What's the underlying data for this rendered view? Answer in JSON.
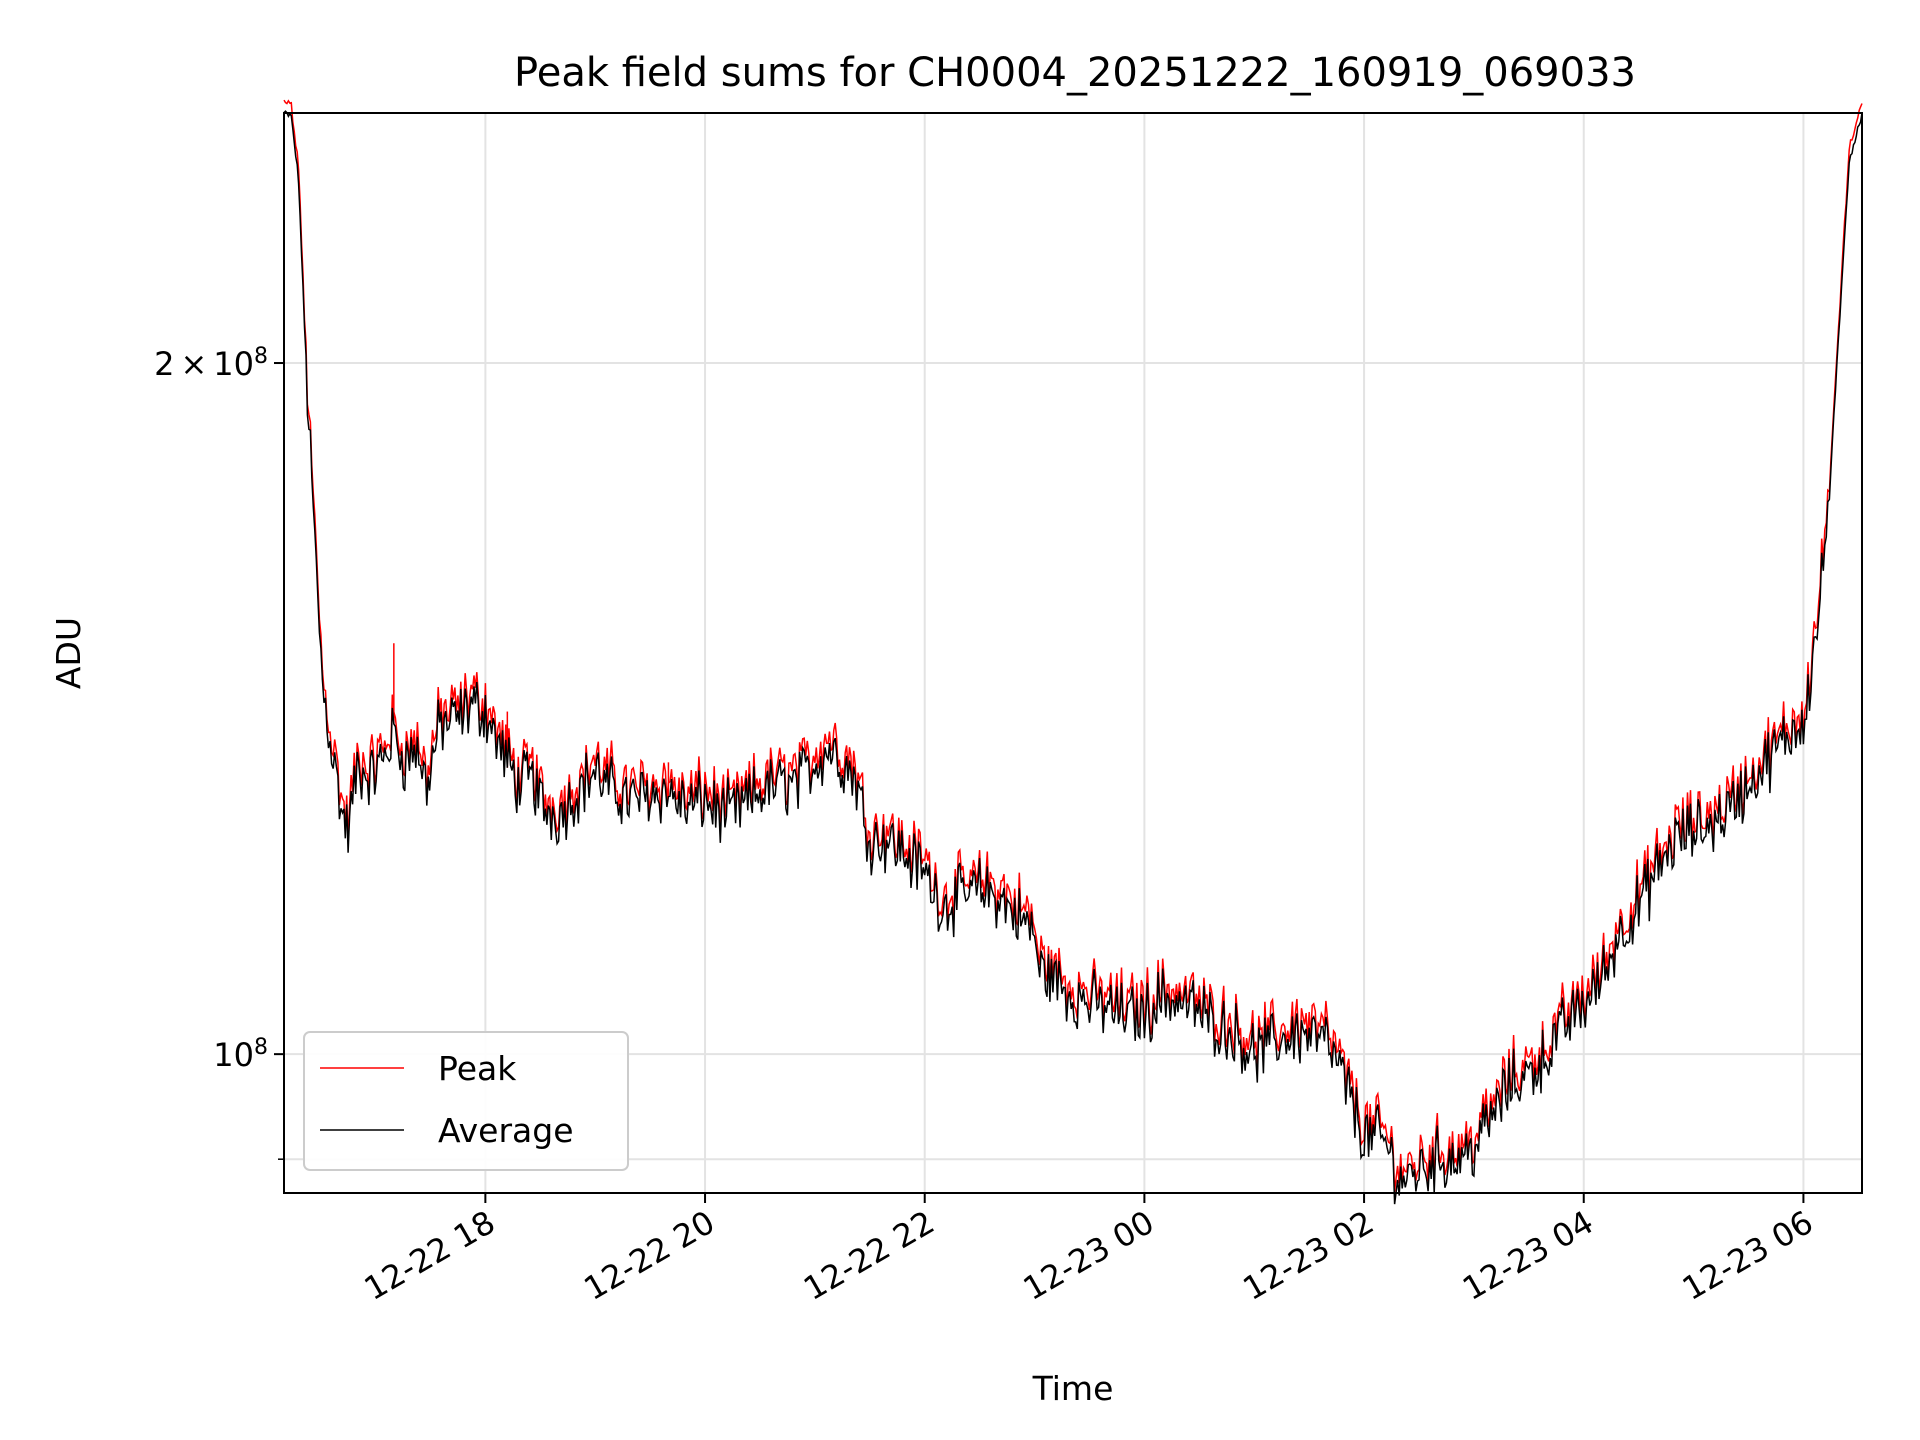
{
  "chart_data": {
    "type": "line",
    "title": "Peak field sums for CH0004_20251222_160919_069033",
    "xlabel": "Time",
    "ylabel": "ADU",
    "y_scale": "log",
    "ylim": [
      87000000,
      257000000
    ],
    "xlim": [
      "2025-12-22 16:10",
      "2025-12-23 06:32"
    ],
    "x_ticks": [
      "12-22 18",
      "12-22 20",
      "12-22 22",
      "12-23 00",
      "12-23 02",
      "12-23 04",
      "12-23 06"
    ],
    "x_tick_times": [
      "2025-12-22 18:00",
      "2025-12-22 20:00",
      "2025-12-22 22:00",
      "2025-12-23 00:00",
      "2025-12-23 02:00",
      "2025-12-23 04:00",
      "2025-12-23 06:00"
    ],
    "y_ticks": [
      {
        "value": 200000000,
        "mantissa": "2",
        "times": "×",
        "base": "10",
        "exp": "8"
      },
      {
        "value": 100000000,
        "mantissa": "",
        "times": "",
        "base": "10",
        "exp": "8"
      }
    ],
    "y_minor_ticks": [
      90000000
    ],
    "grid": true,
    "legend_position": "lower-left",
    "series": [
      {
        "name": "Peak",
        "color": "#ff0000",
        "spikes": [
          {
            "t": "2025-12-22 16:31",
            "y": 147000000
          },
          {
            "t": "2025-12-22 17:10",
            "y": 151000000
          },
          {
            "t": "2025-12-22 18:12",
            "y": 141000000
          },
          {
            "t": "2025-12-22 19:40",
            "y": 134000000
          },
          {
            "t": "2025-12-22 22:10",
            "y": 115000000
          }
        ]
      },
      {
        "name": "Average",
        "color": "#000000",
        "points": [
          [
            "2025-12-22 16:10",
            257000000
          ],
          [
            "2025-12-22 16:14",
            256000000
          ],
          [
            "2025-12-22 16:18",
            240000000
          ],
          [
            "2025-12-22 16:22",
            200000000
          ],
          [
            "2025-12-22 16:26",
            172000000
          ],
          [
            "2025-12-22 16:31",
            145000000
          ],
          [
            "2025-12-22 16:36",
            136000000
          ],
          [
            "2025-12-22 16:42",
            127000000
          ],
          [
            "2025-12-22 16:45",
            125000000
          ],
          [
            "2025-12-22 16:50",
            133000000
          ],
          [
            "2025-12-22 16:58",
            132000000
          ],
          [
            "2025-12-22 17:05",
            135000000
          ],
          [
            "2025-12-22 17:10",
            138000000
          ],
          [
            "2025-12-22 17:16",
            134000000
          ],
          [
            "2025-12-22 17:22",
            136000000
          ],
          [
            "2025-12-22 17:28",
            131000000
          ],
          [
            "2025-12-22 17:35",
            139000000
          ],
          [
            "2025-12-22 17:45",
            140000000
          ],
          [
            "2025-12-22 17:53",
            142000000
          ],
          [
            "2025-12-22 18:00",
            141000000
          ],
          [
            "2025-12-22 18:06",
            137000000
          ],
          [
            "2025-12-22 18:12",
            134000000
          ],
          [
            "2025-12-22 18:18",
            131000000
          ],
          [
            "2025-12-22 18:25",
            132000000
          ],
          [
            "2025-12-22 18:32",
            128000000
          ],
          [
            "2025-12-22 18:40",
            127000000
          ],
          [
            "2025-12-22 18:50",
            130000000
          ],
          [
            "2025-12-22 19:00",
            133000000
          ],
          [
            "2025-12-22 19:05",
            131000000
          ],
          [
            "2025-12-22 19:12",
            130000000
          ],
          [
            "2025-12-22 19:20",
            129000000
          ],
          [
            "2025-12-22 19:30",
            130000000
          ],
          [
            "2025-12-22 19:40",
            130000000
          ],
          [
            "2025-12-22 19:50",
            128000000
          ],
          [
            "2025-12-22 20:00",
            129000000
          ],
          [
            "2025-12-22 20:10",
            127000000
          ],
          [
            "2025-12-22 20:20",
            128000000
          ],
          [
            "2025-12-22 20:30",
            130000000
          ],
          [
            "2025-12-22 20:40",
            131000000
          ],
          [
            "2025-12-22 20:50",
            131000000
          ],
          [
            "2025-12-22 21:00",
            134000000
          ],
          [
            "2025-12-22 21:08",
            136000000
          ],
          [
            "2025-12-22 21:15",
            134000000
          ],
          [
            "2025-12-22 21:22",
            132000000
          ],
          [
            "2025-12-22 21:30",
            124000000
          ],
          [
            "2025-12-22 21:40",
            124000000
          ],
          [
            "2025-12-22 21:50",
            122000000
          ],
          [
            "2025-12-22 22:00",
            120000000
          ],
          [
            "2025-12-22 22:10",
            116000000
          ],
          [
            "2025-12-22 22:20",
            117000000
          ],
          [
            "2025-12-22 22:30",
            118000000
          ],
          [
            "2025-12-22 22:40",
            117000000
          ],
          [
            "2025-12-22 22:50",
            115000000
          ],
          [
            "2025-12-22 23:00",
            113000000
          ],
          [
            "2025-12-22 23:02",
            109000000
          ],
          [
            "2025-12-22 23:10",
            108000000
          ],
          [
            "2025-12-22 23:20",
            106000000
          ],
          [
            "2025-12-22 23:35",
            105000000
          ],
          [
            "2025-12-22 23:50",
            104000000
          ],
          [
            "2025-12-23 00:00",
            104000000
          ],
          [
            "2025-12-23 00:10",
            106000000
          ],
          [
            "2025-12-23 00:25",
            105000000
          ],
          [
            "2025-12-23 00:40",
            103000000
          ],
          [
            "2025-12-23 00:50",
            102000000
          ],
          [
            "2025-12-23 01:00",
            100000000
          ],
          [
            "2025-12-23 01:10",
            101000000
          ],
          [
            "2025-12-23 01:20",
            102000000
          ],
          [
            "2025-12-23 01:30",
            102000000
          ],
          [
            "2025-12-23 01:40",
            101000000
          ],
          [
            "2025-12-23 01:50",
            97000000
          ],
          [
            "2025-12-23 02:00",
            92000000
          ],
          [
            "2025-12-23 02:10",
            92000000
          ],
          [
            "2025-12-23 02:20",
            88000000
          ],
          [
            "2025-12-23 02:30",
            89000000
          ],
          [
            "2025-12-23 02:40",
            90000000
          ],
          [
            "2025-12-23 02:50",
            90000000
          ],
          [
            "2025-12-23 03:00",
            91000000
          ],
          [
            "2025-12-23 03:10",
            94000000
          ],
          [
            "2025-12-23 03:20",
            97000000
          ],
          [
            "2025-12-23 03:30",
            98000000
          ],
          [
            "2025-12-23 03:40",
            100000000
          ],
          [
            "2025-12-23 03:50",
            103000000
          ],
          [
            "2025-12-23 04:00",
            105000000
          ],
          [
            "2025-12-23 04:10",
            108000000
          ],
          [
            "2025-12-23 04:20",
            113000000
          ],
          [
            "2025-12-23 04:30",
            116000000
          ],
          [
            "2025-12-23 04:40",
            120000000
          ],
          [
            "2025-12-23 04:50",
            124000000
          ],
          [
            "2025-12-23 05:00",
            125000000
          ],
          [
            "2025-12-23 05:10",
            126000000
          ],
          [
            "2025-12-23 05:20",
            128000000
          ],
          [
            "2025-12-23 05:30",
            131000000
          ],
          [
            "2025-12-23 05:40",
            134000000
          ],
          [
            "2025-12-23 05:50",
            137000000
          ],
          [
            "2025-12-23 06:00",
            140000000
          ],
          [
            "2025-12-23 06:05",
            148000000
          ],
          [
            "2025-12-23 06:10",
            160000000
          ],
          [
            "2025-12-23 06:15",
            180000000
          ],
          [
            "2025-12-23 06:20",
            210000000
          ],
          [
            "2025-12-23 06:25",
            245000000
          ],
          [
            "2025-12-23 06:32",
            257000000
          ]
        ]
      }
    ]
  }
}
